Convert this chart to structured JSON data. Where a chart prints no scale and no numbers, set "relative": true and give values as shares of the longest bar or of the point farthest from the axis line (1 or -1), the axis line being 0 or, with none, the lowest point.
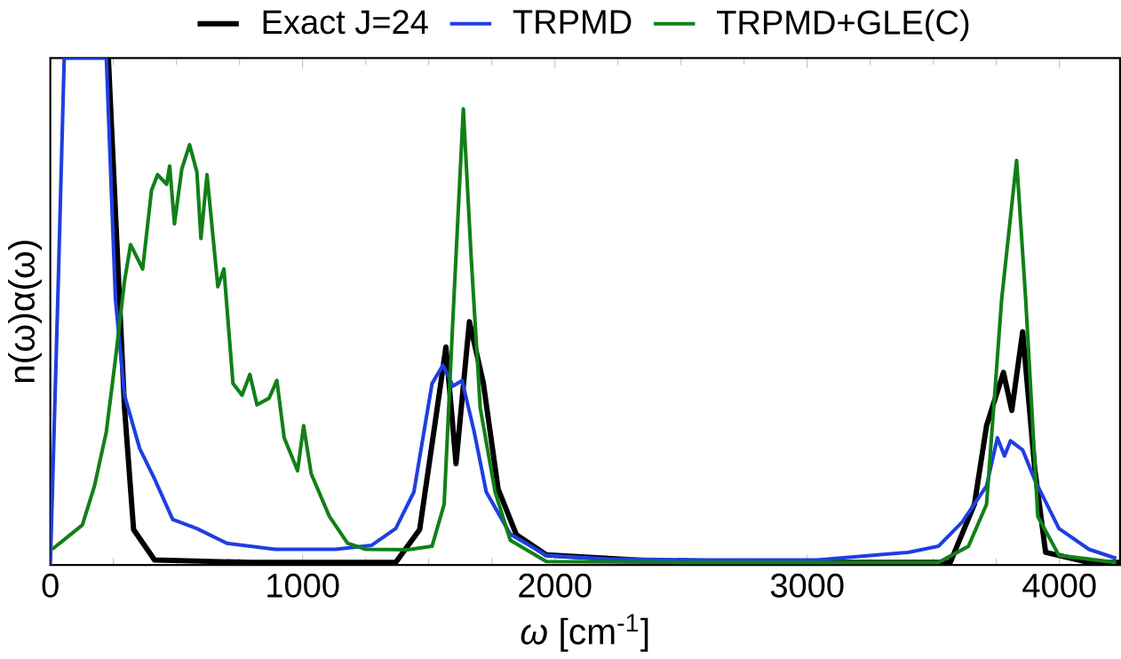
{
  "chart_data": {
    "type": "line",
    "relative": true,
    "xlabel": "*ω* [cm$^{-1}$]",
    "ylabel": "n(ω)α(ω)",
    "xlim": [
      0,
      4240
    ],
    "xticks": [
      0,
      1000,
      2000,
      3000,
      4000
    ],
    "legend": "top",
    "grid": false,
    "marker": "none",
    "line_style": "solid",
    "series": [
      {
        "name": "Exact J=24",
        "color": "#000000",
        "x": [
          230,
          294,
          330,
          413,
          800,
          1369,
          1464,
          1525,
          1568,
          1608,
          1661,
          1716,
          1775,
          1847,
          1966,
          2500,
          3000,
          3567,
          3663,
          3711,
          3778,
          3811,
          3854,
          3902,
          3945,
          4117,
          4240
        ],
        "values": [
          1.0,
          0.31,
          0.07,
          0.01,
          0.005,
          0.005,
          0.07,
          0.28,
          0.43,
          0.2,
          0.48,
          0.36,
          0.15,
          0.06,
          0.02,
          0.005,
          0.005,
          0.005,
          0.12,
          0.275,
          0.38,
          0.305,
          0.46,
          0.19,
          0.025,
          0.005,
          0.005
        ]
      },
      {
        "name": "TRPMD",
        "color": "#1f3fe0",
        "x": [
          0,
          31,
          55,
          222,
          258,
          294,
          354,
          413,
          485,
          581,
          700,
          891,
          1130,
          1274,
          1369,
          1441,
          1513,
          1556,
          1596,
          1632,
          1680,
          1728,
          1823,
          1966,
          2205,
          2600,
          3039,
          3400,
          3520,
          3615,
          3711,
          3754,
          3782,
          3806,
          3854,
          3902,
          3998,
          4117,
          4225
        ],
        "values": [
          0.0,
          0.55,
          1.0,
          1.0,
          0.525,
          0.335,
          0.23,
          0.17,
          0.09,
          0.072,
          0.043,
          0.031,
          0.031,
          0.039,
          0.072,
          0.144,
          0.358,
          0.394,
          0.353,
          0.364,
          0.263,
          0.144,
          0.061,
          0.019,
          0.012,
          0.01,
          0.01,
          0.025,
          0.037,
          0.085,
          0.156,
          0.251,
          0.215,
          0.245,
          0.227,
          0.168,
          0.072,
          0.031,
          0.013
        ]
      },
      {
        "name": "TRPMD+GLE(C)",
        "color": "#118018",
        "x": [
          7,
          67,
          127,
          175,
          222,
          258,
          294,
          318,
          366,
          401,
          425,
          461,
          473,
          492,
          521,
          552,
          581,
          597,
          621,
          664,
          688,
          724,
          760,
          791,
          819,
          867,
          898,
          927,
          980,
          1004,
          1034,
          1106,
          1178,
          1250,
          1417,
          1513,
          1561,
          1596,
          1637,
          1668,
          1704,
          1763,
          1823,
          1966,
          2500,
          3000,
          3520,
          3639,
          3711,
          3771,
          3830,
          3866,
          3914,
          3998,
          4225
        ],
        "values": [
          0.031,
          0.055,
          0.079,
          0.156,
          0.263,
          0.406,
          0.56,
          0.632,
          0.584,
          0.739,
          0.77,
          0.751,
          0.787,
          0.673,
          0.781,
          0.829,
          0.775,
          0.644,
          0.77,
          0.549,
          0.584,
          0.358,
          0.335,
          0.376,
          0.316,
          0.329,
          0.364,
          0.251,
          0.186,
          0.275,
          0.18,
          0.096,
          0.043,
          0.031,
          0.03,
          0.037,
          0.12,
          0.489,
          0.9,
          0.608,
          0.31,
          0.144,
          0.049,
          0.007,
          0.005,
          0.005,
          0.005,
          0.037,
          0.12,
          0.525,
          0.798,
          0.525,
          0.096,
          0.019,
          0.005
        ]
      }
    ]
  }
}
